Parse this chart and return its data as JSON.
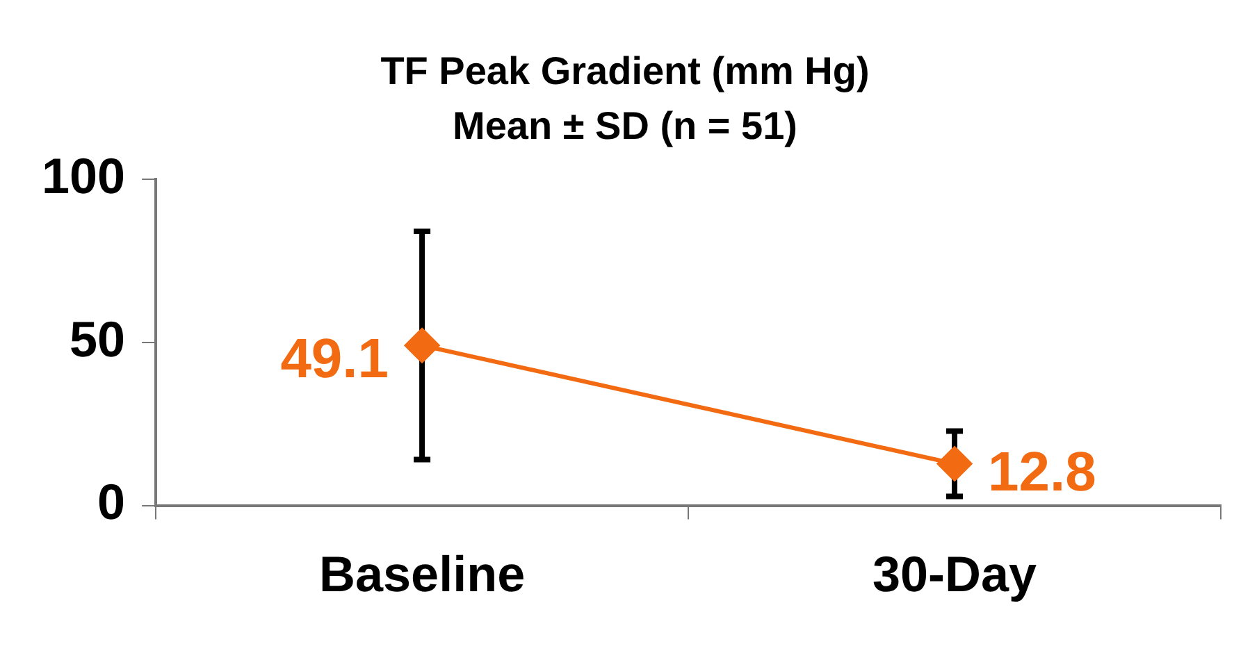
{
  "chart_data": {
    "type": "line",
    "title": "TF Peak Gradient (mm Hg)",
    "subtitle": "Mean ± SD (n = 51)",
    "categories": [
      "Baseline",
      "30-Day"
    ],
    "series": [
      {
        "color": "#f26b12",
        "values": [
          49.1,
          12.8
        ],
        "errors": [
          35,
          10
        ]
      }
    ],
    "ylim": [
      0,
      100
    ],
    "yticks": [
      0,
      50,
      100
    ],
    "grid": false,
    "legend": false,
    "marker": "diamond",
    "line_style": "solid",
    "data_labels": true
  }
}
